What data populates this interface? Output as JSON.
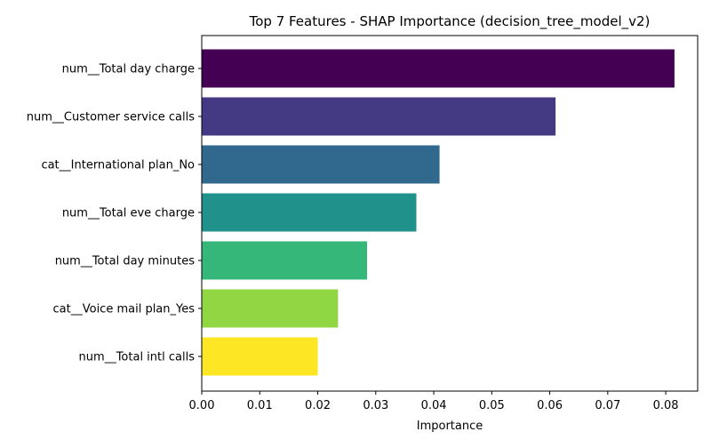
{
  "chart_data": {
    "type": "bar",
    "orientation": "horizontal",
    "title": "Top 7 Features - SHAP Importance (decision_tree_model_v2)",
    "xlabel": "Importance",
    "ylabel": "",
    "xlim": [
      0,
      0.0855
    ],
    "xticks": [
      "0.00",
      "0.01",
      "0.02",
      "0.03",
      "0.04",
      "0.05",
      "0.06",
      "0.07",
      "0.08"
    ],
    "grid": false,
    "categories": [
      "num__Total day charge",
      "num__Customer service calls",
      "cat__International plan_No",
      "num__Total eve charge",
      "num__Total day minutes",
      "cat__Voice mail plan_Yes",
      "num__Total intl calls"
    ],
    "values": [
      0.0815,
      0.061,
      0.041,
      0.037,
      0.0285,
      0.0235,
      0.02
    ],
    "colors": [
      "#440154",
      "#443983",
      "#31688e",
      "#21918c",
      "#35b779",
      "#90d743",
      "#fde725"
    ]
  }
}
